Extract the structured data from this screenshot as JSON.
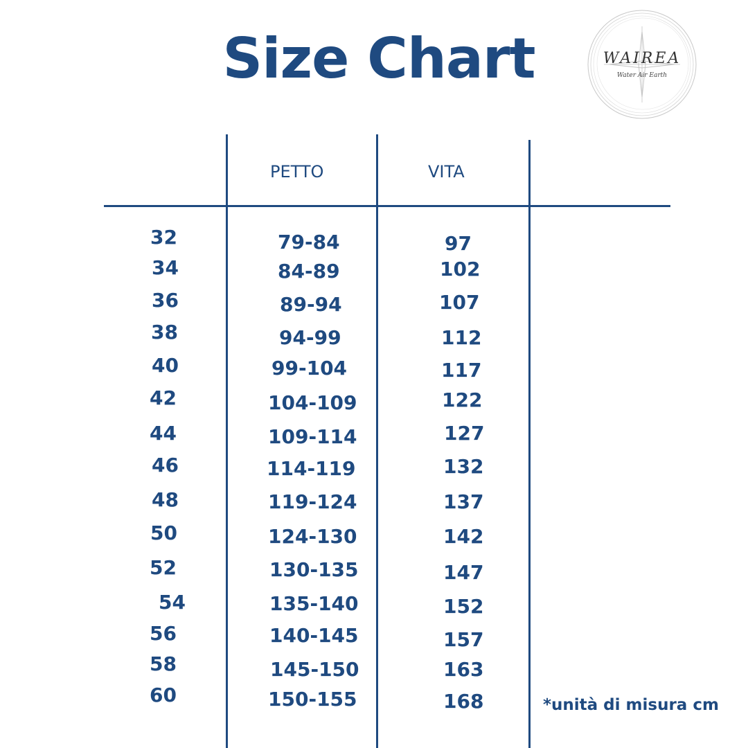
{
  "title": "Size Chart",
  "logo": {
    "name": "WAIREA",
    "tagline": "Water Air Earth"
  },
  "chart_data": {
    "type": "table",
    "title": "Size Chart",
    "columns": [
      "",
      "PETTO",
      "VITA",
      ""
    ],
    "rows": [
      {
        "size": "32",
        "petto": "79-84",
        "vita": "97"
      },
      {
        "size": "34",
        "petto": "84-89",
        "vita": "102"
      },
      {
        "size": "36",
        "petto": "89-94",
        "vita": "107"
      },
      {
        "size": "38",
        "petto": "94-99",
        "vita": "112"
      },
      {
        "size": "40",
        "petto": "99-104",
        "vita": "117"
      },
      {
        "size": "42",
        "petto": "104-109",
        "vita": "122"
      },
      {
        "size": "44",
        "petto": "109-114",
        "vita": "127"
      },
      {
        "size": "46",
        "petto": "114-119",
        "vita": "132"
      },
      {
        "size": "48",
        "petto": "119-124",
        "vita": "137"
      },
      {
        "size": "50",
        "petto": "124-130",
        "vita": "142"
      },
      {
        "size": "52",
        "petto": "130-135",
        "vita": "147"
      },
      {
        "size": "54",
        "petto": "135-140",
        "vita": "152"
      },
      {
        "size": "56",
        "petto": "140-145",
        "vita": "157"
      },
      {
        "size": "58",
        "petto": "145-150",
        "vita": "163"
      },
      {
        "size": "60",
        "petto": "150-155",
        "vita": "168"
      }
    ],
    "note": "*unità di misura cm"
  },
  "colors": {
    "primary": "#1f4a80",
    "background": "#ffffff"
  }
}
